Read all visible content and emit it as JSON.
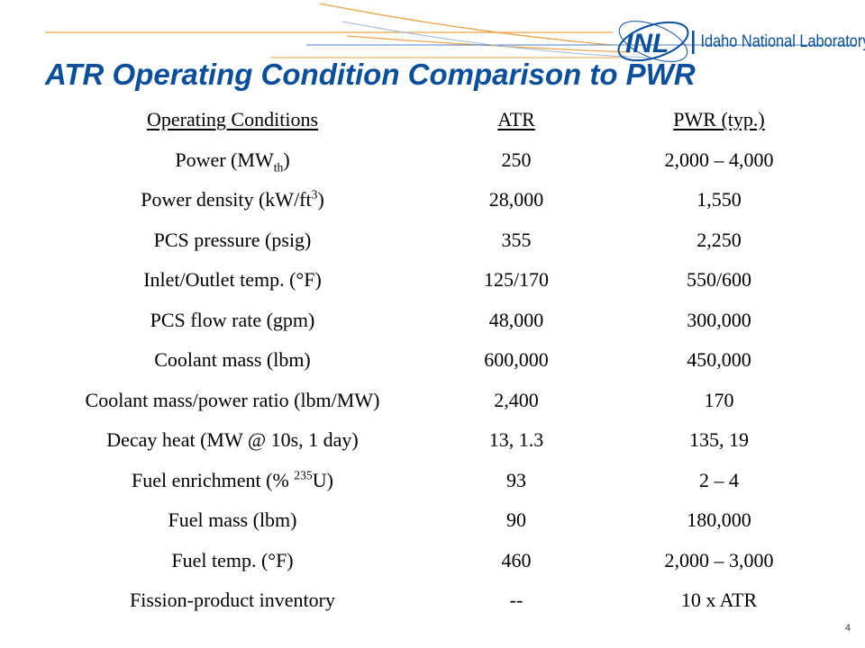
{
  "header": {
    "title": "ATR Operating Condition Comparison to PWR",
    "logo_letters": "INL",
    "logo_text": "Idaho National Laboratory",
    "brand_color": "#0b4f9c",
    "accent_color": "#e8a447"
  },
  "table": {
    "headers": [
      "Operating Conditions",
      "ATR",
      "PWR (typ.)"
    ],
    "rows": [
      {
        "condition": "Power (MW",
        "condition_sub": "th",
        "condition_end": ")",
        "atr": "250",
        "pwr": "2,000 – 4,000"
      },
      {
        "condition": "Power density (kW/ft",
        "condition_sup": "3",
        "condition_end": ")",
        "atr": "28,000",
        "pwr": "1,550"
      },
      {
        "condition": "PCS pressure (psig)",
        "atr": "355",
        "pwr": "2,250"
      },
      {
        "condition": "Inlet/Outlet temp. (°F)",
        "atr": "125/170",
        "pwr": "550/600"
      },
      {
        "condition": "PCS flow rate (gpm)",
        "atr": "48,000",
        "pwr": "300,000"
      },
      {
        "condition": "Coolant mass (lbm)",
        "atr": "600,000",
        "pwr": "450,000"
      },
      {
        "condition": "Coolant mass/power ratio (lbm/MW)",
        "atr": "2,400",
        "pwr": "170"
      },
      {
        "condition": "Decay heat (MW @ 10s, 1 day)",
        "atr": "13, 1.3",
        "pwr": "135, 19"
      },
      {
        "condition": "Fuel enrichment (% ",
        "condition_sup": "235",
        "condition_end": "U)",
        "atr": "93",
        "pwr": "2 – 4"
      },
      {
        "condition": "Fuel mass (lbm)",
        "atr": "90",
        "pwr": "180,000"
      },
      {
        "condition": "Fuel temp. (°F)",
        "atr": "460",
        "pwr": "2,000 – 3,000"
      },
      {
        "condition": "Fission-product inventory",
        "atr": "--",
        "pwr": "10 x ATR"
      }
    ]
  },
  "footer": {
    "page_number": "4"
  }
}
